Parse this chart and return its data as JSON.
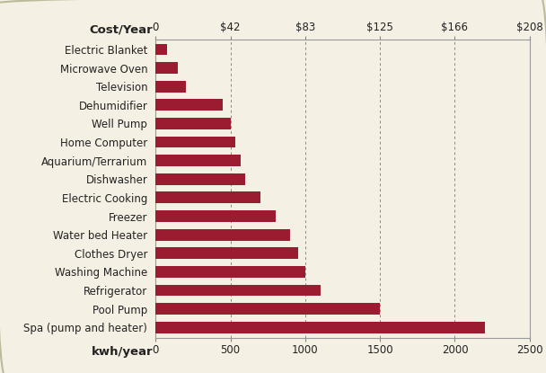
{
  "categories": [
    "Spa (pump and heater)",
    "Pool Pump",
    "Refrigerator",
    "Washing Machine",
    "Clothes Dryer",
    "Water bed Heater",
    "Freezer",
    "Electric Cooking",
    "Dishwasher",
    "Aquarium/Terrarium",
    "Home Computer",
    "Well Pump",
    "Dehumidifier",
    "Television",
    "Microwave Oven",
    "Electric Blanket"
  ],
  "values": [
    2200,
    1500,
    1100,
    1000,
    950,
    900,
    800,
    700,
    600,
    570,
    530,
    500,
    450,
    200,
    150,
    75
  ],
  "bar_color": "#9B1B30",
  "background_color": "#F5F0E4",
  "border_color": "#CCCCAA",
  "top_ticks": [
    0,
    500,
    1000,
    1500,
    2000,
    2500
  ],
  "top_tick_labels": [
    "0",
    "$42",
    "$83",
    "$125",
    "$166",
    "$208"
  ],
  "bottom_ticks": [
    0,
    500,
    1000,
    1500,
    2000,
    2500
  ],
  "bottom_tick_labels": [
    "0",
    "500",
    "1000",
    "1500",
    "2000",
    "2500"
  ],
  "xlim": [
    0,
    2500
  ],
  "cost_year_label": "Cost/Year",
  "kwh_year_label": "kwh/year",
  "label_fontsize": 8.5,
  "tick_fontsize": 8.5,
  "header_fontsize": 9.5,
  "bar_height": 0.62
}
